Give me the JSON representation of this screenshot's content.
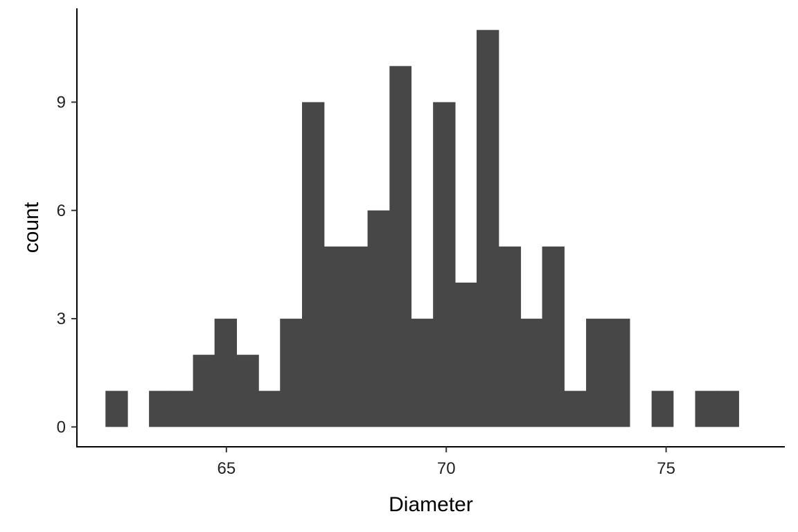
{
  "chart_data": {
    "type": "bar",
    "subtype": "histogram",
    "xlabel": "Diameter",
    "ylabel": "count",
    "x_ticks": [
      65,
      70,
      75
    ],
    "y_ticks": [
      0,
      3,
      6,
      9
    ],
    "xlim": [
      61.6,
      77.7
    ],
    "ylim": [
      -0.55,
      11.6
    ],
    "bin_width": 0.4966,
    "bars": [
      {
        "x_start": 62.25,
        "x_end": 62.75,
        "count": 1
      },
      {
        "x_start": 62.75,
        "x_end": 63.24,
        "count": 0
      },
      {
        "x_start": 63.24,
        "x_end": 63.74,
        "count": 1
      },
      {
        "x_start": 63.74,
        "x_end": 64.24,
        "count": 1
      },
      {
        "x_start": 64.24,
        "x_end": 64.73,
        "count": 2
      },
      {
        "x_start": 64.73,
        "x_end": 65.23,
        "count": 3
      },
      {
        "x_start": 65.23,
        "x_end": 65.73,
        "count": 2
      },
      {
        "x_start": 65.73,
        "x_end": 66.22,
        "count": 1
      },
      {
        "x_start": 66.22,
        "x_end": 66.72,
        "count": 3
      },
      {
        "x_start": 66.72,
        "x_end": 67.22,
        "count": 9
      },
      {
        "x_start": 67.22,
        "x_end": 67.71,
        "count": 5
      },
      {
        "x_start": 67.71,
        "x_end": 68.21,
        "count": 5
      },
      {
        "x_start": 68.21,
        "x_end": 68.71,
        "count": 6
      },
      {
        "x_start": 68.71,
        "x_end": 69.2,
        "count": 10
      },
      {
        "x_start": 69.2,
        "x_end": 69.7,
        "count": 3
      },
      {
        "x_start": 69.7,
        "x_end": 70.2,
        "count": 9
      },
      {
        "x_start": 70.2,
        "x_end": 70.69,
        "count": 4
      },
      {
        "x_start": 70.69,
        "x_end": 71.19,
        "count": 11
      },
      {
        "x_start": 71.19,
        "x_end": 71.69,
        "count": 5
      },
      {
        "x_start": 71.69,
        "x_end": 72.18,
        "count": 3
      },
      {
        "x_start": 72.18,
        "x_end": 72.68,
        "count": 5
      },
      {
        "x_start": 72.68,
        "x_end": 73.18,
        "count": 1
      },
      {
        "x_start": 73.18,
        "x_end": 73.67,
        "count": 3
      },
      {
        "x_start": 73.67,
        "x_end": 74.17,
        "count": 3
      },
      {
        "x_start": 74.17,
        "x_end": 74.67,
        "count": 0
      },
      {
        "x_start": 74.67,
        "x_end": 75.16,
        "count": 1
      },
      {
        "x_start": 75.16,
        "x_end": 75.66,
        "count": 0
      },
      {
        "x_start": 75.66,
        "x_end": 76.16,
        "count": 1
      },
      {
        "x_start": 76.16,
        "x_end": 76.65,
        "count": 1
      }
    ],
    "bar_color": "#474747",
    "grid": false,
    "legend": "none"
  }
}
